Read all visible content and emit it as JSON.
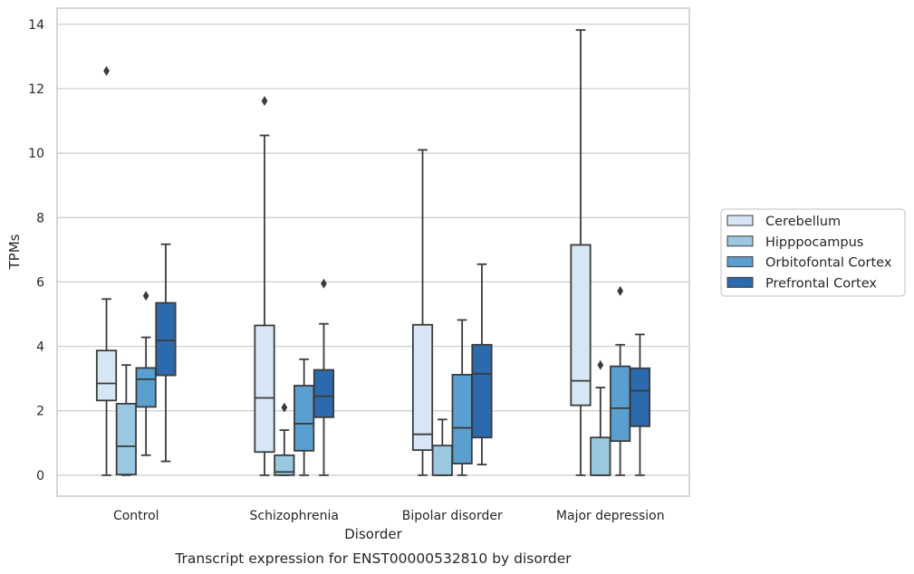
{
  "caption": "Transcript expression for ENST00000532810 by disorder",
  "chart_data": {
    "type": "boxplot",
    "xlabel": "Disorder",
    "ylabel": "TPMs",
    "ylim": [
      -0.65,
      14.5
    ],
    "yticks": [
      0,
      2,
      4,
      6,
      8,
      10,
      12,
      14
    ],
    "ytick_labels": [
      "0",
      "2",
      "4",
      "6",
      "8",
      "10",
      "12",
      "14"
    ],
    "grid": "horizontal",
    "legend_position": "right",
    "categories": [
      "Control",
      "Schizophrenia",
      "Bipolar disorder",
      "Major depression"
    ],
    "series": [
      {
        "name": "Cerebellum",
        "color": "#d6e6f4",
        "boxes": [
          {
            "min": 0,
            "q1": 2.32,
            "median": 2.85,
            "q3": 3.87,
            "max": 5.47,
            "outliers": [
              12.55
            ]
          },
          {
            "min": 0,
            "q1": 0.72,
            "median": 2.4,
            "q3": 4.65,
            "max": 10.55,
            "outliers": [
              11.62
            ]
          },
          {
            "min": 0,
            "q1": 0.78,
            "median": 1.27,
            "q3": 4.67,
            "max": 10.1,
            "outliers": []
          },
          {
            "min": 0,
            "q1": 2.17,
            "median": 2.93,
            "q3": 7.15,
            "max": 13.82,
            "outliers": []
          }
        ]
      },
      {
        "name": "Hipppocampus",
        "color": "#9ac8e0",
        "boxes": [
          {
            "min": 0,
            "q1": 0.02,
            "median": 0.9,
            "q3": 2.22,
            "max": 3.42,
            "outliers": []
          },
          {
            "min": 0,
            "q1": 0.0,
            "median": 0.1,
            "q3": 0.62,
            "max": 1.4,
            "outliers": [
              2.1
            ]
          },
          {
            "min": 0,
            "q1": 0.0,
            "median": 0.0,
            "q3": 0.92,
            "max": 1.73,
            "outliers": []
          },
          {
            "min": 0,
            "q1": 0.0,
            "median": 0.0,
            "q3": 1.17,
            "max": 2.72,
            "outliers": [
              3.42
            ]
          }
        ]
      },
      {
        "name": "Orbitofontal Cortex",
        "color": "#5a9fcf",
        "boxes": [
          {
            "min": 0.62,
            "q1": 2.12,
            "median": 2.98,
            "q3": 3.33,
            "max": 4.28,
            "outliers": [
              5.57
            ]
          },
          {
            "min": 0,
            "q1": 0.76,
            "median": 1.6,
            "q3": 2.78,
            "max": 3.6,
            "outliers": []
          },
          {
            "min": 0,
            "q1": 0.36,
            "median": 1.47,
            "q3": 3.12,
            "max": 4.82,
            "outliers": []
          },
          {
            "min": 0,
            "q1": 1.06,
            "median": 2.08,
            "q3": 3.38,
            "max": 4.05,
            "outliers": [
              5.72
            ]
          }
        ]
      },
      {
        "name": "Prefrontal Cortex",
        "color": "#2b6aad",
        "boxes": [
          {
            "min": 0.43,
            "q1": 3.1,
            "median": 4.18,
            "q3": 5.35,
            "max": 7.17,
            "outliers": []
          },
          {
            "min": 0,
            "q1": 1.8,
            "median": 2.45,
            "q3": 3.27,
            "max": 4.7,
            "outliers": [
              5.95
            ]
          },
          {
            "min": 0.33,
            "q1": 1.17,
            "median": 3.15,
            "q3": 4.05,
            "max": 6.55,
            "outliers": []
          },
          {
            "min": 0,
            "q1": 1.52,
            "median": 2.62,
            "q3": 3.32,
            "max": 4.37,
            "outliers": []
          }
        ]
      }
    ]
  }
}
